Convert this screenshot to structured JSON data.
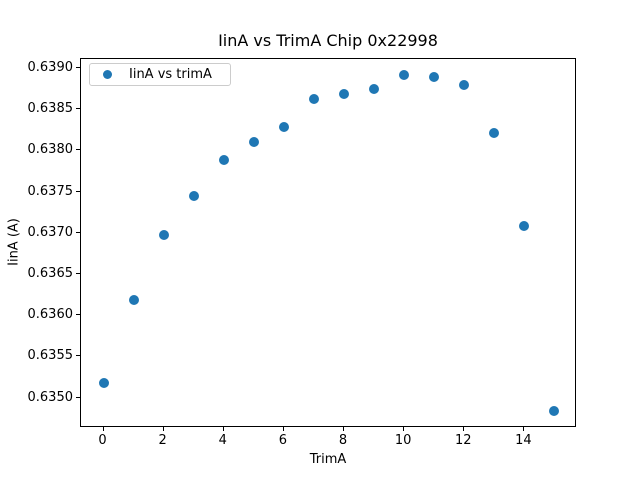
{
  "figure": {
    "background_color": "#ffffff",
    "frame_color": "#000000"
  },
  "chart_data": {
    "type": "scatter",
    "title": "IinA vs TrimA Chip 0x22998",
    "xlabel": "TrimA",
    "ylabel": "IinA (A)",
    "legend": [
      "IinA vs trimA"
    ],
    "legend_position": "upper left",
    "marker_color": "#1f77b4",
    "marker_shape": "circle",
    "grid": false,
    "x": [
      0,
      1,
      2,
      3,
      4,
      5,
      6,
      7,
      8,
      9,
      10,
      11,
      12,
      13,
      14,
      15
    ],
    "y": [
      0.63518,
      0.63618,
      0.63697,
      0.63745,
      0.63788,
      0.6381,
      0.63828,
      0.63862,
      0.63869,
      0.63875,
      0.63891,
      0.63889,
      0.6388,
      0.63821,
      0.63708,
      0.63484
    ],
    "xlim": [
      -0.75,
      15.75
    ],
    "ylim": [
      0.63463,
      0.63911
    ],
    "xticks": [
      0,
      2,
      4,
      6,
      8,
      10,
      12,
      14
    ],
    "yticks": [
      0.635,
      0.6355,
      0.636,
      0.6365,
      0.637,
      0.6375,
      0.638,
      0.6385,
      0.639
    ],
    "ytick_decimals": 4
  }
}
